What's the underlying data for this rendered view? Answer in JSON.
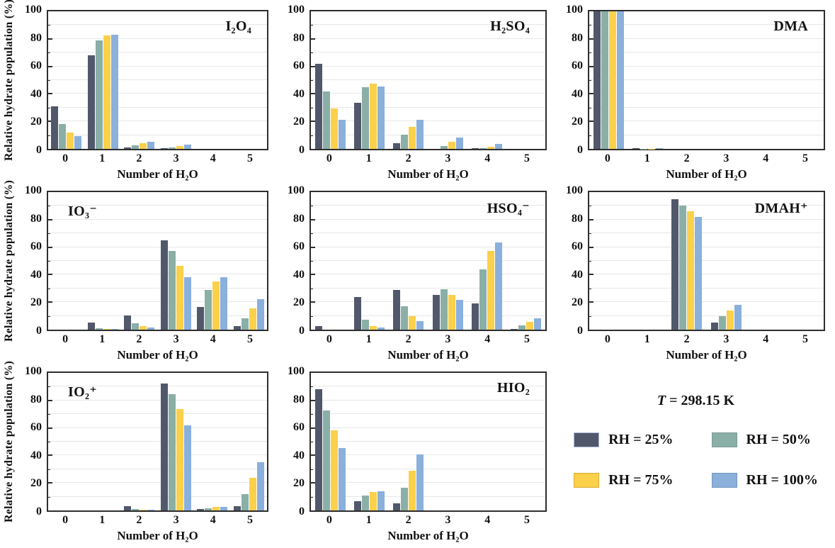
{
  "figure": {
    "ylabel": "Relative hydrate population (%)",
    "xlabel": "Number of H₂O",
    "categories": [
      "0",
      "1",
      "2",
      "3",
      "4",
      "5"
    ],
    "ytick_labels": [
      "0",
      "20",
      "40",
      "60",
      "80",
      "100"
    ],
    "ylim": [
      0,
      100
    ],
    "grid": "horizontal, every 10 units",
    "series_names": [
      "RH = 25%",
      "RH = 50%",
      "RH = 75%",
      "RH = 100%"
    ],
    "series_colors": [
      "#52586B",
      "#8AAFA7",
      "#FBD04B",
      "#8AB0DB"
    ]
  },
  "legend": {
    "title_var": "T",
    "title_rest": " = 298.15 K",
    "entries": [
      {
        "label": "RH = 25%",
        "color": "#52586B",
        "border": "#A9B7D5"
      },
      {
        "label": "RH = 50%",
        "color": "#8AAFA7",
        "border": "#7A9A93"
      },
      {
        "label": "RH = 75%",
        "color": "#FBD04B",
        "border": "#D8AE35"
      },
      {
        "label": "RH = 100%",
        "color": "#8AB0DB",
        "border": "#7396BD"
      }
    ]
  },
  "chart_data": [
    {
      "id": "i2o4",
      "type": "bar",
      "title": "I₂O₄",
      "title_pos": "right",
      "categories": [
        "0",
        "1",
        "2",
        "3",
        "4",
        "5"
      ],
      "series": [
        {
          "name": "RH = 25%",
          "values": [
            31,
            68,
            1,
            0.5,
            0,
            0
          ]
        },
        {
          "name": "RH = 50%",
          "values": [
            18,
            79,
            2.5,
            1,
            0,
            0
          ]
        },
        {
          "name": "RH = 75%",
          "values": [
            12,
            82.5,
            4,
            2,
            0,
            0
          ]
        },
        {
          "name": "RH = 100%",
          "values": [
            9.5,
            83,
            5,
            3,
            0,
            0
          ]
        }
      ]
    },
    {
      "id": "h2so4",
      "type": "bar",
      "title": "H₂SO₄",
      "title_pos": "right",
      "categories": [
        "0",
        "1",
        "2",
        "3",
        "4",
        "5"
      ],
      "series": [
        {
          "name": "RH = 25%",
          "values": [
            62,
            33.5,
            4,
            0,
            0.5,
            0
          ]
        },
        {
          "name": "RH = 50%",
          "values": [
            42,
            45,
            10.5,
            2,
            0.5,
            0
          ]
        },
        {
          "name": "RH = 75%",
          "values": [
            29.5,
            47.5,
            16,
            5,
            1.5,
            0
          ]
        },
        {
          "name": "RH = 100%",
          "values": [
            21,
            45.5,
            21,
            8.5,
            3.5,
            0
          ]
        }
      ]
    },
    {
      "id": "dma",
      "type": "bar",
      "title": "DMA",
      "title_pos": "right",
      "categories": [
        "0",
        "1",
        "2",
        "3",
        "4",
        "5"
      ],
      "series": [
        {
          "name": "RH = 25%",
          "values": [
            100,
            0.3,
            0,
            0,
            0,
            0
          ]
        },
        {
          "name": "RH = 50%",
          "values": [
            100,
            0.2,
            0,
            0,
            0,
            0
          ]
        },
        {
          "name": "RH = 75%",
          "values": [
            100,
            0.2,
            0,
            0,
            0,
            0
          ]
        },
        {
          "name": "RH = 100%",
          "values": [
            100,
            0.7,
            0,
            0,
            0,
            0
          ]
        }
      ]
    },
    {
      "id": "io3",
      "type": "bar",
      "title": "IO₃⁻",
      "title_pos": "left",
      "categories": [
        "0",
        "1",
        "2",
        "3",
        "4",
        "5"
      ],
      "series": [
        {
          "name": "RH = 25%",
          "values": [
            0,
            5,
            10.5,
            65,
            16.5,
            2.5
          ]
        },
        {
          "name": "RH = 50%",
          "values": [
            0,
            1,
            4.5,
            57,
            29,
            8.5
          ]
        },
        {
          "name": "RH = 75%",
          "values": [
            0,
            0.3,
            2.5,
            46.5,
            35,
            15.5
          ]
        },
        {
          "name": "RH = 100%",
          "values": [
            0,
            0.3,
            1.5,
            38,
            38,
            22
          ]
        }
      ]
    },
    {
      "id": "hso4",
      "type": "bar",
      "title": "HSO₄⁻",
      "title_pos": "right",
      "categories": [
        "0",
        "1",
        "2",
        "3",
        "4",
        "5"
      ],
      "series": [
        {
          "name": "RH = 25%",
          "values": [
            2.5,
            23.5,
            29,
            25.5,
            19,
            0.5
          ]
        },
        {
          "name": "RH = 50%",
          "values": [
            0,
            7,
            17,
            29.5,
            44,
            3
          ]
        },
        {
          "name": "RH = 75%",
          "values": [
            0,
            2.5,
            10,
            25.5,
            57,
            5.5
          ]
        },
        {
          "name": "RH = 100%",
          "values": [
            0,
            1.5,
            6,
            21.5,
            63.5,
            8
          ]
        }
      ]
    },
    {
      "id": "dmah",
      "type": "bar",
      "title": "DMAH⁺",
      "title_pos": "right",
      "categories": [
        "0",
        "1",
        "2",
        "3",
        "4",
        "5"
      ],
      "series": [
        {
          "name": "RH = 25%",
          "values": [
            0,
            0,
            95,
            5,
            0,
            0
          ]
        },
        {
          "name": "RH = 50%",
          "values": [
            0,
            0,
            90,
            10,
            0,
            0
          ]
        },
        {
          "name": "RH = 75%",
          "values": [
            0,
            0,
            86,
            14,
            0,
            0
          ]
        },
        {
          "name": "RH = 100%",
          "values": [
            0,
            0,
            82,
            18,
            0,
            0
          ]
        }
      ]
    },
    {
      "id": "io2",
      "type": "bar",
      "title": "IO₂⁺",
      "title_pos": "left",
      "categories": [
        "0",
        "1",
        "2",
        "3",
        "4",
        "5"
      ],
      "series": [
        {
          "name": "RH = 25%",
          "values": [
            0,
            0,
            3,
            92.5,
            0.8,
            3.3
          ]
        },
        {
          "name": "RH = 50%",
          "values": [
            0,
            0,
            1,
            84.5,
            1.7,
            12
          ]
        },
        {
          "name": "RH = 75%",
          "values": [
            0,
            0,
            0.7,
            73.5,
            2.5,
            23.5
          ]
        },
        {
          "name": "RH = 100%",
          "values": [
            0,
            0,
            0.3,
            62,
            2.8,
            35
          ]
        }
      ]
    },
    {
      "id": "hio2",
      "type": "bar",
      "title": "HIO₂",
      "title_pos": "right",
      "categories": [
        "0",
        "1",
        "2",
        "3",
        "4",
        "5"
      ],
      "series": [
        {
          "name": "RH = 25%",
          "values": [
            88,
            6.5,
            5,
            0,
            0,
            0
          ]
        },
        {
          "name": "RH = 50%",
          "values": [
            72.5,
            11,
            16.5,
            0,
            0,
            0
          ]
        },
        {
          "name": "RH = 75%",
          "values": [
            58,
            13.5,
            29,
            0,
            0,
            0
          ]
        },
        {
          "name": "RH = 100%",
          "values": [
            45.5,
            14,
            40.5,
            0,
            0,
            0
          ]
        }
      ]
    }
  ]
}
